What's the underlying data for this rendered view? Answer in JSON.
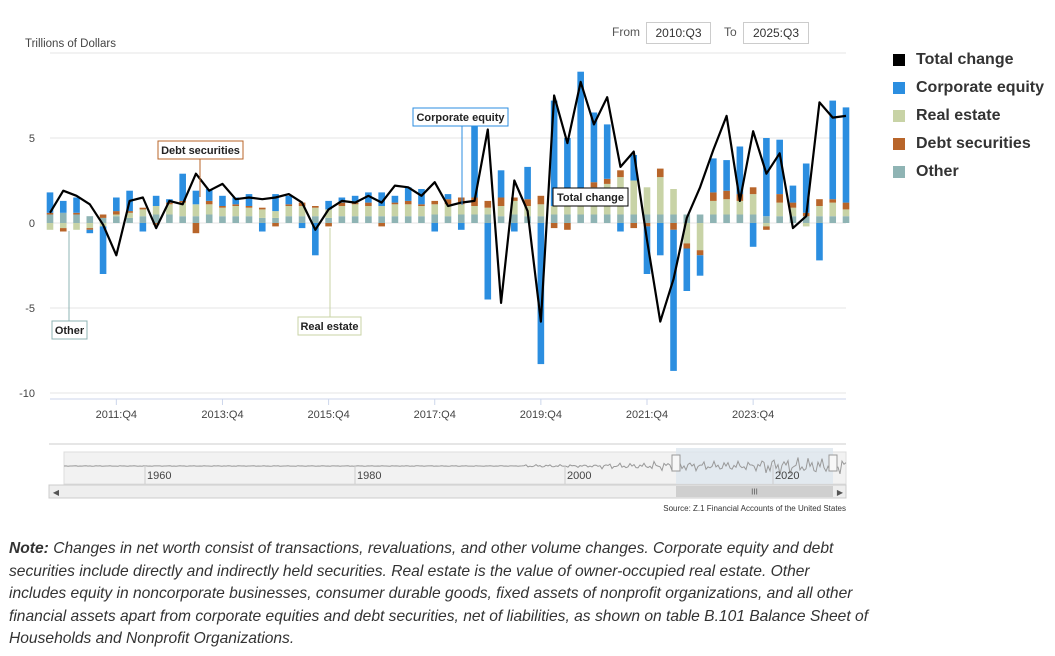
{
  "range": {
    "from_label": "From",
    "from_value": "2010:Q3",
    "to_label": "To",
    "to_value": "2025:Q3"
  },
  "legend": [
    {
      "name": "Total change",
      "color": "#000000"
    },
    {
      "name": "Corporate equity",
      "color": "#2b8ee0"
    },
    {
      "name": "Real estate",
      "color": "#c8d3a6"
    },
    {
      "name": "Debt securities",
      "color": "#b8652a"
    },
    {
      "name": "Other",
      "color": "#8fb4b4"
    }
  ],
  "source": "Source: Z.1 Financial Accounts of the United States",
  "note": {
    "label": "Note:",
    "text": " Changes in net worth consist of transactions, revaluations, and other volume changes. Corporate equity and debt securities include directly and indirectly held securities. Real estate is the value of owner-occupied real estate. Other includes equity in noncorporate businesses, consumer durable goods, fixed assets of nonprofit organizations, and all other financial assets apart from corporate equities and debt securities, net of liabilities, as shown on table B.101 Balance Sheet of Households and Nonprofit Organizations."
  },
  "callouts": [
    {
      "series": "Other",
      "label": "Other"
    },
    {
      "series": "Debt securities",
      "label": "Debt securities"
    },
    {
      "series": "Real estate",
      "label": "Real estate"
    },
    {
      "series": "Corporate equity",
      "label": "Corporate equity"
    },
    {
      "series": "Total change",
      "label": "Total change"
    }
  ],
  "navigator": {
    "year_labels": [
      "1960",
      "1980",
      "2000",
      "2020"
    ],
    "handle_text": "III"
  },
  "chart_data": {
    "type": "bar",
    "stacked": true,
    "ylabel": "Trillions of Dollars",
    "ylim": [
      -10,
      10
    ],
    "yticks": [
      -10,
      -5,
      0,
      5
    ],
    "xtick_labels": [
      "2011:Q4",
      "2013:Q4",
      "2015:Q4",
      "2017:Q4",
      "2019:Q4",
      "2021:Q4",
      "2023:Q4"
    ],
    "xtick_index": [
      5,
      13,
      21,
      29,
      37,
      45,
      53
    ],
    "categories": [
      "2010:Q3",
      "2010:Q4",
      "2011:Q1",
      "2011:Q2",
      "2011:Q3",
      "2011:Q4",
      "2012:Q1",
      "2012:Q2",
      "2012:Q3",
      "2012:Q4",
      "2013:Q1",
      "2013:Q2",
      "2013:Q3",
      "2013:Q4",
      "2014:Q1",
      "2014:Q2",
      "2014:Q3",
      "2014:Q4",
      "2015:Q1",
      "2015:Q2",
      "2015:Q3",
      "2015:Q4",
      "2016:Q1",
      "2016:Q2",
      "2016:Q3",
      "2016:Q4",
      "2017:Q1",
      "2017:Q2",
      "2017:Q3",
      "2017:Q4",
      "2018:Q1",
      "2018:Q2",
      "2018:Q3",
      "2018:Q4",
      "2019:Q1",
      "2019:Q2",
      "2019:Q3",
      "2019:Q4",
      "2020:Q1",
      "2020:Q2",
      "2020:Q3",
      "2020:Q4",
      "2021:Q1",
      "2021:Q2",
      "2021:Q3",
      "2021:Q4",
      "2022:Q1",
      "2022:Q2",
      "2022:Q3",
      "2022:Q4",
      "2023:Q1",
      "2023:Q2",
      "2023:Q3",
      "2023:Q4",
      "2024:Q1",
      "2024:Q2",
      "2024:Q3",
      "2024:Q4",
      "2025:Q1",
      "2025:Q2",
      "2025:Q3"
    ],
    "series": [
      {
        "name": "Other",
        "color": "#8fb4b4",
        "values": [
          0.5,
          0.6,
          0.5,
          0.4,
          0.3,
          0.4,
          0.3,
          0.4,
          0.5,
          0.5,
          0.4,
          0.4,
          0.5,
          0.4,
          0.4,
          0.4,
          0.3,
          0.3,
          0.4,
          0.4,
          0.4,
          0.3,
          0.4,
          0.4,
          0.4,
          0.4,
          0.4,
          0.4,
          0.4,
          0.5,
          0.4,
          0.5,
          0.5,
          0.5,
          0.4,
          0.5,
          0.4,
          0.4,
          0.5,
          0.5,
          0.5,
          0.5,
          0.5,
          0.5,
          0.5,
          0.5,
          0.5,
          0.5,
          0.5,
          0.5,
          0.5,
          0.5,
          0.5,
          0.5,
          0.4,
          0.4,
          0.4,
          0.4,
          0.4,
          0.4,
          0.4
        ]
      },
      {
        "name": "Real estate",
        "color": "#c8d3a6",
        "values": [
          -0.4,
          -0.3,
          -0.4,
          -0.3,
          -0.2,
          0.1,
          0.3,
          0.4,
          0.5,
          0.6,
          0.8,
          0.7,
          0.6,
          0.5,
          0.6,
          0.5,
          0.5,
          0.4,
          0.6,
          0.6,
          0.5,
          0.5,
          0.6,
          0.7,
          0.6,
          0.6,
          0.7,
          0.7,
          0.6,
          0.6,
          0.7,
          0.6,
          0.5,
          0.4,
          0.6,
          0.8,
          0.6,
          0.7,
          0.5,
          0.9,
          1.2,
          1.6,
          1.8,
          2.2,
          2.0,
          1.6,
          2.2,
          1.5,
          -1.2,
          -1.6,
          0.8,
          0.9,
          0.8,
          1.2,
          -0.2,
          0.8,
          0.5,
          -0.2,
          0.6,
          0.8,
          0.4
        ]
      },
      {
        "name": "Debt securities",
        "color": "#b8652a",
        "values": [
          0.1,
          -0.2,
          0.1,
          -0.1,
          0.2,
          0.2,
          0.1,
          0.1,
          -0.1,
          0.1,
          0.1,
          -0.6,
          0.2,
          0.1,
          0.1,
          0.1,
          0.1,
          -0.2,
          0.1,
          0.2,
          0.1,
          -0.2,
          0.2,
          0.1,
          0.2,
          -0.2,
          0.1,
          0.2,
          0.1,
          0.2,
          0.3,
          0.4,
          0.5,
          0.4,
          0.5,
          0.2,
          0.4,
          0.5,
          -0.3,
          -0.4,
          0.3,
          0.3,
          0.3,
          0.4,
          -0.3,
          -0.2,
          0.5,
          -0.4,
          -0.3,
          -0.3,
          0.5,
          0.5,
          0.4,
          0.4,
          -0.2,
          0.5,
          0.3,
          0.2,
          0.4,
          0.2,
          0.4
        ]
      },
      {
        "name": "Corporate equity",
        "color": "#2b8ee0",
        "values": [
          1.2,
          0.7,
          0.9,
          -0.2,
          -2.8,
          0.8,
          1.2,
          -0.5,
          0.6,
          0.2,
          1.6,
          0.8,
          0.7,
          0.6,
          0.4,
          0.7,
          -0.5,
          1.0,
          0.5,
          -0.3,
          -1.9,
          0.5,
          0.3,
          0.4,
          0.6,
          0.8,
          0.4,
          0.8,
          0.9,
          -0.5,
          0.3,
          -0.4,
          4.7,
          -4.5,
          1.6,
          -0.5,
          1.9,
          -8.3,
          6.2,
          3.6,
          6.9,
          4.1,
          3.2,
          -0.5,
          1.5,
          -2.8,
          -1.9,
          -8.3,
          -2.5,
          -1.2,
          2.0,
          1.8,
          2.8,
          -1.4,
          4.6,
          3.2,
          1.0,
          2.9,
          -2.2,
          5.8,
          5.6
        ]
      }
    ],
    "total": {
      "name": "Total change",
      "color": "#000000",
      "values": [
        0.6,
        1.9,
        1.6,
        1.1,
        -0.1,
        -1.9,
        1.3,
        1.5,
        -0.3,
        1.3,
        1.1,
        2.9,
        1.9,
        2.3,
        1.4,
        1.5,
        1.4,
        1.5,
        1.7,
        1.2,
        -0.4,
        0.8,
        1.3,
        1.2,
        1.6,
        1.2,
        2.2,
        2.1,
        1.6,
        2.4,
        1.0,
        1.2,
        1.3,
        5.5,
        -4.7,
        2.5,
        0.7,
        -5.8,
        7.5,
        4.7,
        8.3,
        5.8,
        7.4,
        3.3,
        4.2,
        -1.0,
        -5.8,
        -3.3,
        0.3,
        2.1,
        4.3,
        6.3,
        1.3,
        5.4,
        2.9,
        4.1,
        -0.3,
        0.4,
        7.1,
        6.2,
        6.3
      ]
    }
  }
}
